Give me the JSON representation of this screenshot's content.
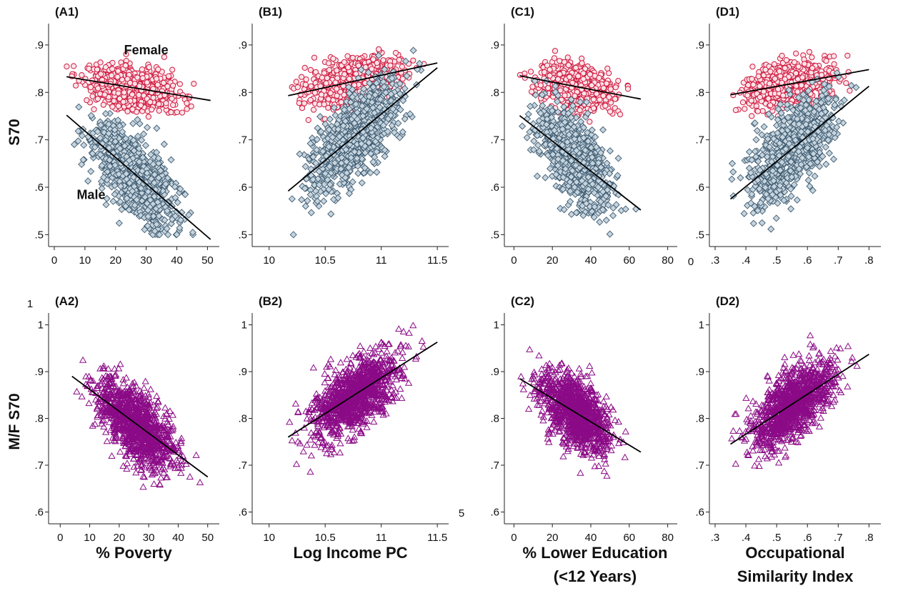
{
  "row_labels": {
    "top": "S70",
    "bottom": "M/F S70"
  },
  "x_titles": [
    [
      "% Poverty"
    ],
    [
      "Log Income PC"
    ],
    [
      "% Lower Education",
      "(<12 Years)"
    ],
    [
      "Occupational",
      "Similarity Index"
    ]
  ],
  "stray_labels": {
    "top_left_one": "1",
    "b2_right_five": "5",
    "c1_right_zero": "0"
  },
  "colors": {
    "female_stroke": "#d0193f",
    "female_fill": "#fbe3e8",
    "male_stroke": "#3e5a70",
    "male_fill": "#c5d4de",
    "ratio_stroke": "#8b0a86",
    "fit_line": "#000000"
  },
  "chart_data": [
    {
      "panel": "(A1)",
      "type": "scatter",
      "xlabel": "",
      "ylabel": "S70",
      "xlim": [
        0,
        52
      ],
      "ylim": [
        0.49,
        0.93
      ],
      "xticks": [
        0,
        10,
        20,
        30,
        40,
        50
      ],
      "xtick_labels": [
        "0",
        "10",
        "20",
        "30",
        "40",
        "50"
      ],
      "yticks": [
        0.5,
        0.6,
        0.7,
        0.8,
        0.9
      ],
      "ytick_labels": [
        ".5",
        ".6",
        ".7",
        ".8",
        ".9"
      ],
      "annotations": [
        {
          "text": "Female",
          "x": 30,
          "y": 0.88
        },
        {
          "text": "Male",
          "x": 12,
          "y": 0.575
        }
      ],
      "series": [
        {
          "name": "Female",
          "marker": "circle",
          "x_range": [
            4,
            51
          ],
          "x_skew": 0.7,
          "fit": {
            "x": [
              4,
              51
            ],
            "y": [
              0.833,
              0.783
            ]
          },
          "spread": 0.022,
          "n": 900
        },
        {
          "name": "Male",
          "marker": "diamond",
          "x_range": [
            4,
            51
          ],
          "x_skew": 0.7,
          "fit": {
            "x": [
              4,
              51
            ],
            "y": [
              0.752,
              0.49
            ]
          },
          "spread": 0.042,
          "n": 900
        }
      ]
    },
    {
      "panel": "(B1)",
      "type": "scatter",
      "xlabel": "",
      "ylabel": "",
      "xlim": [
        9.9,
        11.55
      ],
      "ylim": [
        0.49,
        0.93
      ],
      "xticks": [
        10,
        10.5,
        11,
        11.5
      ],
      "xtick_labels": [
        "10",
        "10.5",
        "11",
        "11.5"
      ],
      "yticks": [
        0.5,
        0.6,
        0.7,
        0.8,
        0.9
      ],
      "ytick_labels": [
        ".5",
        ".6",
        ".7",
        ".8",
        ".9"
      ],
      "annotations": [],
      "series": [
        {
          "name": "Female",
          "marker": "circle",
          "x_range": [
            10.17,
            11.5
          ],
          "x_skew": 1.0,
          "fit": {
            "x": [
              10.17,
              11.5
            ],
            "y": [
              0.793,
              0.862
            ]
          },
          "spread": 0.022,
          "n": 900
        },
        {
          "name": "Male",
          "marker": "diamond",
          "x_range": [
            10.17,
            11.5
          ],
          "x_skew": 1.0,
          "fit": {
            "x": [
              10.17,
              11.5
            ],
            "y": [
              0.592,
              0.852
            ]
          },
          "spread": 0.042,
          "n": 900
        }
      ]
    },
    {
      "panel": "(C1)",
      "type": "scatter",
      "xlabel": "",
      "ylabel": "",
      "xlim": [
        -2,
        82
      ],
      "ylim": [
        0.49,
        0.93
      ],
      "xticks": [
        0,
        20,
        40,
        60,
        80
      ],
      "xtick_labels": [
        "0",
        "20",
        "40",
        "60",
        "80"
      ],
      "yticks": [
        0.5,
        0.6,
        0.7,
        0.8,
        0.9
      ],
      "ytick_labels": [
        ".5",
        ".6",
        ".7",
        ".8",
        ".9"
      ],
      "annotations": [],
      "series": [
        {
          "name": "Female",
          "marker": "circle",
          "x_range": [
            3,
            66
          ],
          "x_skew": 0.8,
          "fit": {
            "x": [
              3,
              66
            ],
            "y": [
              0.835,
              0.786
            ]
          },
          "spread": 0.022,
          "n": 900
        },
        {
          "name": "Male",
          "marker": "diamond",
          "x_range": [
            3,
            66
          ],
          "x_skew": 0.8,
          "fit": {
            "x": [
              3,
              66
            ],
            "y": [
              0.751,
              0.552
            ]
          },
          "spread": 0.042,
          "n": 900
        }
      ]
    },
    {
      "panel": "(D1)",
      "type": "scatter",
      "xlabel": "",
      "ylabel": "",
      "xlim": [
        0.3,
        0.82
      ],
      "ylim": [
        0.49,
        0.93
      ],
      "xticks": [
        0.3,
        0.4,
        0.5,
        0.6,
        0.7,
        0.8
      ],
      "xtick_labels": [
        ".3",
        ".4",
        ".5",
        ".6",
        ".7",
        ".8"
      ],
      "yticks": [
        0.5,
        0.6,
        0.7,
        0.8,
        0.9
      ],
      "ytick_labels": [
        ".5",
        ".6",
        ".7",
        ".8",
        ".9"
      ],
      "annotations": [],
      "series": [
        {
          "name": "Female",
          "marker": "circle",
          "x_range": [
            0.35,
            0.8
          ],
          "x_skew": 1.0,
          "fit": {
            "x": [
              0.35,
              0.8
            ],
            "y": [
              0.795,
              0.848
            ]
          },
          "spread": 0.022,
          "n": 900
        },
        {
          "name": "Male",
          "marker": "diamond",
          "x_range": [
            0.35,
            0.8
          ],
          "x_skew": 1.0,
          "fit": {
            "x": [
              0.35,
              0.8
            ],
            "y": [
              0.575,
              0.813
            ]
          },
          "spread": 0.042,
          "n": 900
        }
      ]
    },
    {
      "panel": "(A2)",
      "type": "scatter",
      "xlabel": "% Poverty",
      "ylabel": "M/F S70",
      "xlim": [
        -2,
        52
      ],
      "ylim": [
        0.59,
        1.01
      ],
      "xticks": [
        0,
        10,
        20,
        30,
        40,
        50
      ],
      "xtick_labels": [
        "0",
        "10",
        "20",
        "30",
        "40",
        "50"
      ],
      "yticks": [
        0.6,
        0.7,
        0.8,
        0.9,
        1.0
      ],
      "ytick_labels": [
        ".6",
        ".7",
        ".8",
        ".9",
        "1"
      ],
      "annotations": [],
      "series": [
        {
          "name": "M/F S70",
          "marker": "triangle",
          "x_range": [
            4,
            50
          ],
          "x_skew": 0.7,
          "fit": {
            "x": [
              4,
              50
            ],
            "y": [
              0.89,
              0.675
            ]
          },
          "spread": 0.036,
          "n": 1100
        }
      ]
    },
    {
      "panel": "(B2)",
      "type": "scatter",
      "xlabel": "Log Income PC",
      "ylabel": "",
      "xlim": [
        9.9,
        11.55
      ],
      "ylim": [
        0.59,
        1.01
      ],
      "xticks": [
        10,
        10.5,
        11,
        11.5
      ],
      "xtick_labels": [
        "10",
        "10.5",
        "11",
        "11.5"
      ],
      "yticks": [
        0.6,
        0.7,
        0.8,
        0.9,
        1.0
      ],
      "ytick_labels": [
        ".6",
        ".7",
        ".8",
        ".9",
        "1"
      ],
      "annotations": [],
      "series": [
        {
          "name": "M/F S70",
          "marker": "triangle",
          "x_range": [
            10.17,
            11.5
          ],
          "x_skew": 1.0,
          "fit": {
            "x": [
              10.17,
              11.5
            ],
            "y": [
              0.76,
              0.963
            ]
          },
          "spread": 0.036,
          "n": 1100
        }
      ]
    },
    {
      "panel": "(C2)",
      "type": "scatter",
      "xlabel": "% Lower Education (<12 Years)",
      "ylabel": "",
      "xlim": [
        -2,
        82
      ],
      "ylim": [
        0.59,
        1.01
      ],
      "xticks": [
        0,
        20,
        40,
        60,
        80
      ],
      "xtick_labels": [
        "0",
        "20",
        "40",
        "60",
        "80"
      ],
      "yticks": [
        0.6,
        0.7,
        0.8,
        0.9,
        1.0
      ],
      "ytick_labels": [
        ".6",
        ".7",
        ".8",
        ".9",
        "1"
      ],
      "annotations": [],
      "series": [
        {
          "name": "M/F S70",
          "marker": "triangle",
          "x_range": [
            3,
            66
          ],
          "x_skew": 0.8,
          "fit": {
            "x": [
              3,
              66
            ],
            "y": [
              0.885,
              0.728
            ]
          },
          "spread": 0.036,
          "n": 1100
        }
      ]
    },
    {
      "panel": "(D2)",
      "type": "scatter",
      "xlabel": "Occupational Similarity Index",
      "ylabel": "",
      "xlim": [
        0.3,
        0.82
      ],
      "ylim": [
        0.59,
        1.01
      ],
      "xticks": [
        0.3,
        0.4,
        0.5,
        0.6,
        0.7,
        0.8
      ],
      "xtick_labels": [
        ".3",
        ".4",
        ".5",
        ".6",
        ".7",
        ".8"
      ],
      "yticks": [
        0.6,
        0.7,
        0.8,
        0.9,
        1.0
      ],
      "ytick_labels": [
        ".6",
        ".7",
        ".8",
        ".9",
        "1"
      ],
      "annotations": [],
      "series": [
        {
          "name": "M/F S70",
          "marker": "triangle",
          "x_range": [
            0.35,
            0.8
          ],
          "x_skew": 1.0,
          "fit": {
            "x": [
              0.35,
              0.8
            ],
            "y": [
              0.745,
              0.937
            ]
          },
          "spread": 0.036,
          "n": 1100
        }
      ]
    }
  ]
}
